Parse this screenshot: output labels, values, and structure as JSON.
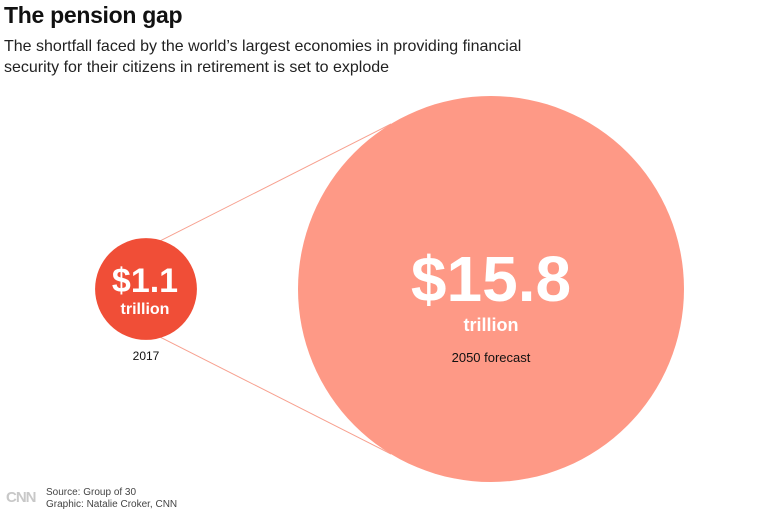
{
  "header": {
    "title": "The pension gap",
    "subtitle": "The shortfall faced by the world’s largest economies in providing financial security for their citizens in retirement is set to explode"
  },
  "chart_data": {
    "type": "bubble",
    "title": "The pension gap",
    "unit": "trillion",
    "series": [
      {
        "label": "2017",
        "value": 1.1,
        "value_label": "$1.1",
        "unit_label": "trillion",
        "color": "#f04e37"
      },
      {
        "label": "2050 forecast",
        "value": 15.8,
        "value_label": "$15.8",
        "unit_label": "trillion",
        "color": "#fe9986"
      }
    ],
    "connector_color": "#f7a08f"
  },
  "footer": {
    "logo": "CNN",
    "source": "Source: Group of 30",
    "credit": "Graphic: Natalie Croker, CNN"
  }
}
